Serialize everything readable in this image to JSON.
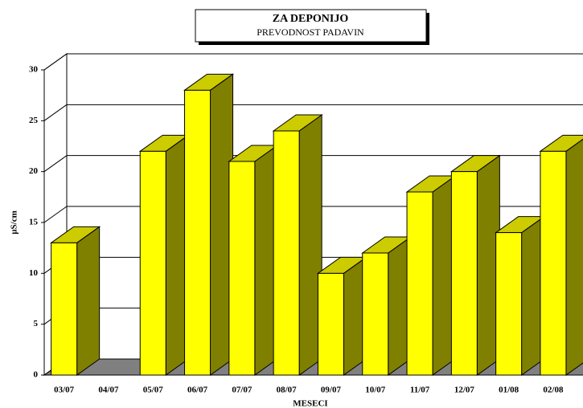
{
  "chart_data": {
    "type": "bar3d",
    "title": "ZA DEPONIJO",
    "subtitle": "PREVODNOST PADAVIN",
    "x_label": "MESECI",
    "y_label": "µS/cm",
    "categories": [
      "03/07",
      "04/07",
      "05/07",
      "06/07",
      "07/07",
      "08/07",
      "09/07",
      "10/07",
      "11/07",
      "12/07",
      "01/08",
      "02/08"
    ],
    "values": [
      13,
      null,
      22,
      28,
      21,
      24,
      10,
      12,
      18,
      20,
      14,
      22
    ],
    "color": "#ffff00",
    "ylim": [
      0,
      30
    ],
    "yticks": [
      0,
      5,
      10,
      15,
      20,
      25,
      30
    ],
    "grid": true
  }
}
